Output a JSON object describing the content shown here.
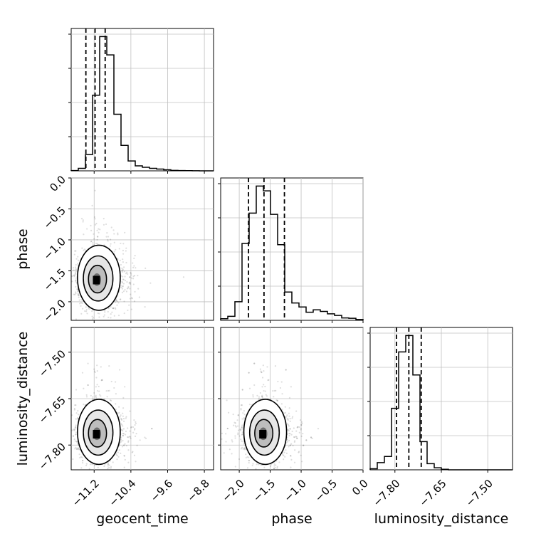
{
  "chart_data": {
    "type": "corner",
    "parameters": [
      "geocent_time",
      "phase",
      "luminosity_distance"
    ],
    "ranges": {
      "geocent_time": [
        -11.7,
        -8.6
      ],
      "phase": [
        -2.3,
        0.0
      ],
      "luminosity_distance": [
        -7.88,
        -7.42
      ]
    },
    "ticks": {
      "geocent_time": [
        "−11.2",
        "−10.4",
        "−9.6",
        "−8.8"
      ],
      "phase": [
        "−2.0",
        "−1.5",
        "−1.0",
        "−0.5",
        "0.0"
      ],
      "luminosity_distance": [
        "−7.80",
        "−7.65",
        "−7.50"
      ]
    },
    "quantiles": {
      "geocent_time": [
        -11.38,
        -11.18,
        -10.96
      ],
      "phase": [
        -1.85,
        -1.6,
        -1.27
      ],
      "luminosity_distance": [
        -7.795,
        -7.755,
        -7.715
      ]
    },
    "histograms": {
      "geocent_time": {
        "edges": [
          -11.7,
          -11.545,
          -11.39,
          -11.235,
          -11.08,
          -10.925,
          -10.77,
          -10.615,
          -10.46,
          -10.305,
          -10.15,
          -9.995,
          -9.84,
          -9.685,
          -9.53,
          -9.375,
          -9.22,
          -9.065,
          -8.91,
          -8.755,
          -8.6
        ],
        "counts": [
          0.4,
          3.5,
          23,
          107,
          190,
          164,
          80,
          36,
          14,
          7,
          5,
          3.5,
          2.5,
          1.5,
          0.6,
          0.4,
          0.2,
          0.1,
          0.05,
          0
        ]
      },
      "phase": {
        "edges": [
          -2.3,
          -2.185,
          -2.07,
          -1.955,
          -1.84,
          -1.725,
          -1.61,
          -1.495,
          -1.38,
          -1.265,
          -1.15,
          -1.035,
          -0.92,
          -0.805,
          -0.69,
          -0.575,
          -0.46,
          -0.345,
          -0.23,
          -0.115,
          0.0
        ],
        "counts": [
          4,
          10,
          46,
          190,
          265,
          332,
          320,
          262,
          187,
          70,
          43,
          33,
          20,
          26,
          22,
          16,
          12,
          6,
          5,
          2
        ]
      },
      "luminosity_distance": {
        "edges": [
          -7.88,
          -7.857,
          -7.834,
          -7.811,
          -7.788,
          -7.765,
          -7.742,
          -7.719,
          -7.696,
          -7.673,
          -7.65,
          -7.627,
          -7.604,
          -7.581,
          -7.558,
          -7.535,
          -7.512,
          -7.489,
          -7.466,
          -7.443,
          -7.42
        ],
        "counts": [
          2,
          14,
          26,
          120,
          230,
          262,
          185,
          55,
          12,
          4,
          1,
          0,
          0,
          0,
          0,
          0,
          0,
          0,
          0,
          0
        ]
      }
    },
    "density_peaks": {
      "geocent_time-phase": [
        -11.15,
        -1.65
      ],
      "geocent_time-luminosity_distance": [
        -11.15,
        -7.765
      ],
      "phase-luminosity_distance": [
        -1.62,
        -7.765
      ]
    },
    "grid": true
  }
}
